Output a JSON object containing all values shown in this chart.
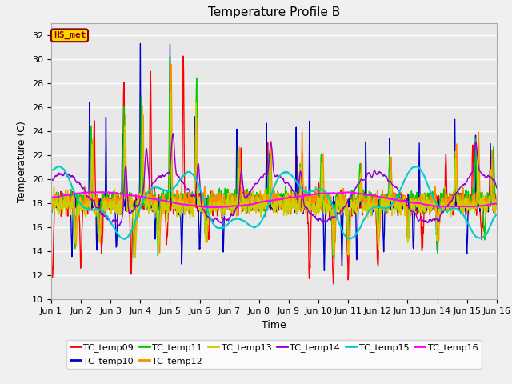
{
  "title": "Temperature Profile B",
  "xlabel": "Time",
  "ylabel": "Temperature (C)",
  "ylim": [
    10,
    33
  ],
  "yticks": [
    10,
    12,
    14,
    16,
    18,
    20,
    22,
    24,
    26,
    28,
    30,
    32
  ],
  "xtick_labels": [
    "Jun 1",
    "Jun 2",
    "Jun 3",
    "Jun 4",
    "Jun 5",
    "Jun 6",
    "Jun 7",
    "Jun 8",
    "Jun 9",
    "Jun 10",
    "Jun 11",
    "Jun 12",
    "Jun 13",
    "Jun 14",
    "Jun 15",
    "Jun 16"
  ],
  "annotation_text": "HS_met",
  "annotation_color": "#8B0000",
  "annotation_bg": "#FFD700",
  "series_colors": {
    "TC_temp09": "#FF0000",
    "TC_temp10": "#0000CD",
    "TC_temp11": "#00CC00",
    "TC_temp12": "#FF8C00",
    "TC_temp13": "#CCCC00",
    "TC_temp14": "#9400D3",
    "TC_temp15": "#00CCCC",
    "TC_temp16": "#FF00FF"
  },
  "plot_bg": "#E8E8E8",
  "fig_bg": "#F0F0F0",
  "grid_color": "#FFFFFF",
  "title_fontsize": 11,
  "axis_label_fontsize": 9,
  "tick_fontsize": 8,
  "linewidth": 1.0,
  "n_days": 15,
  "points_per_day": 96
}
